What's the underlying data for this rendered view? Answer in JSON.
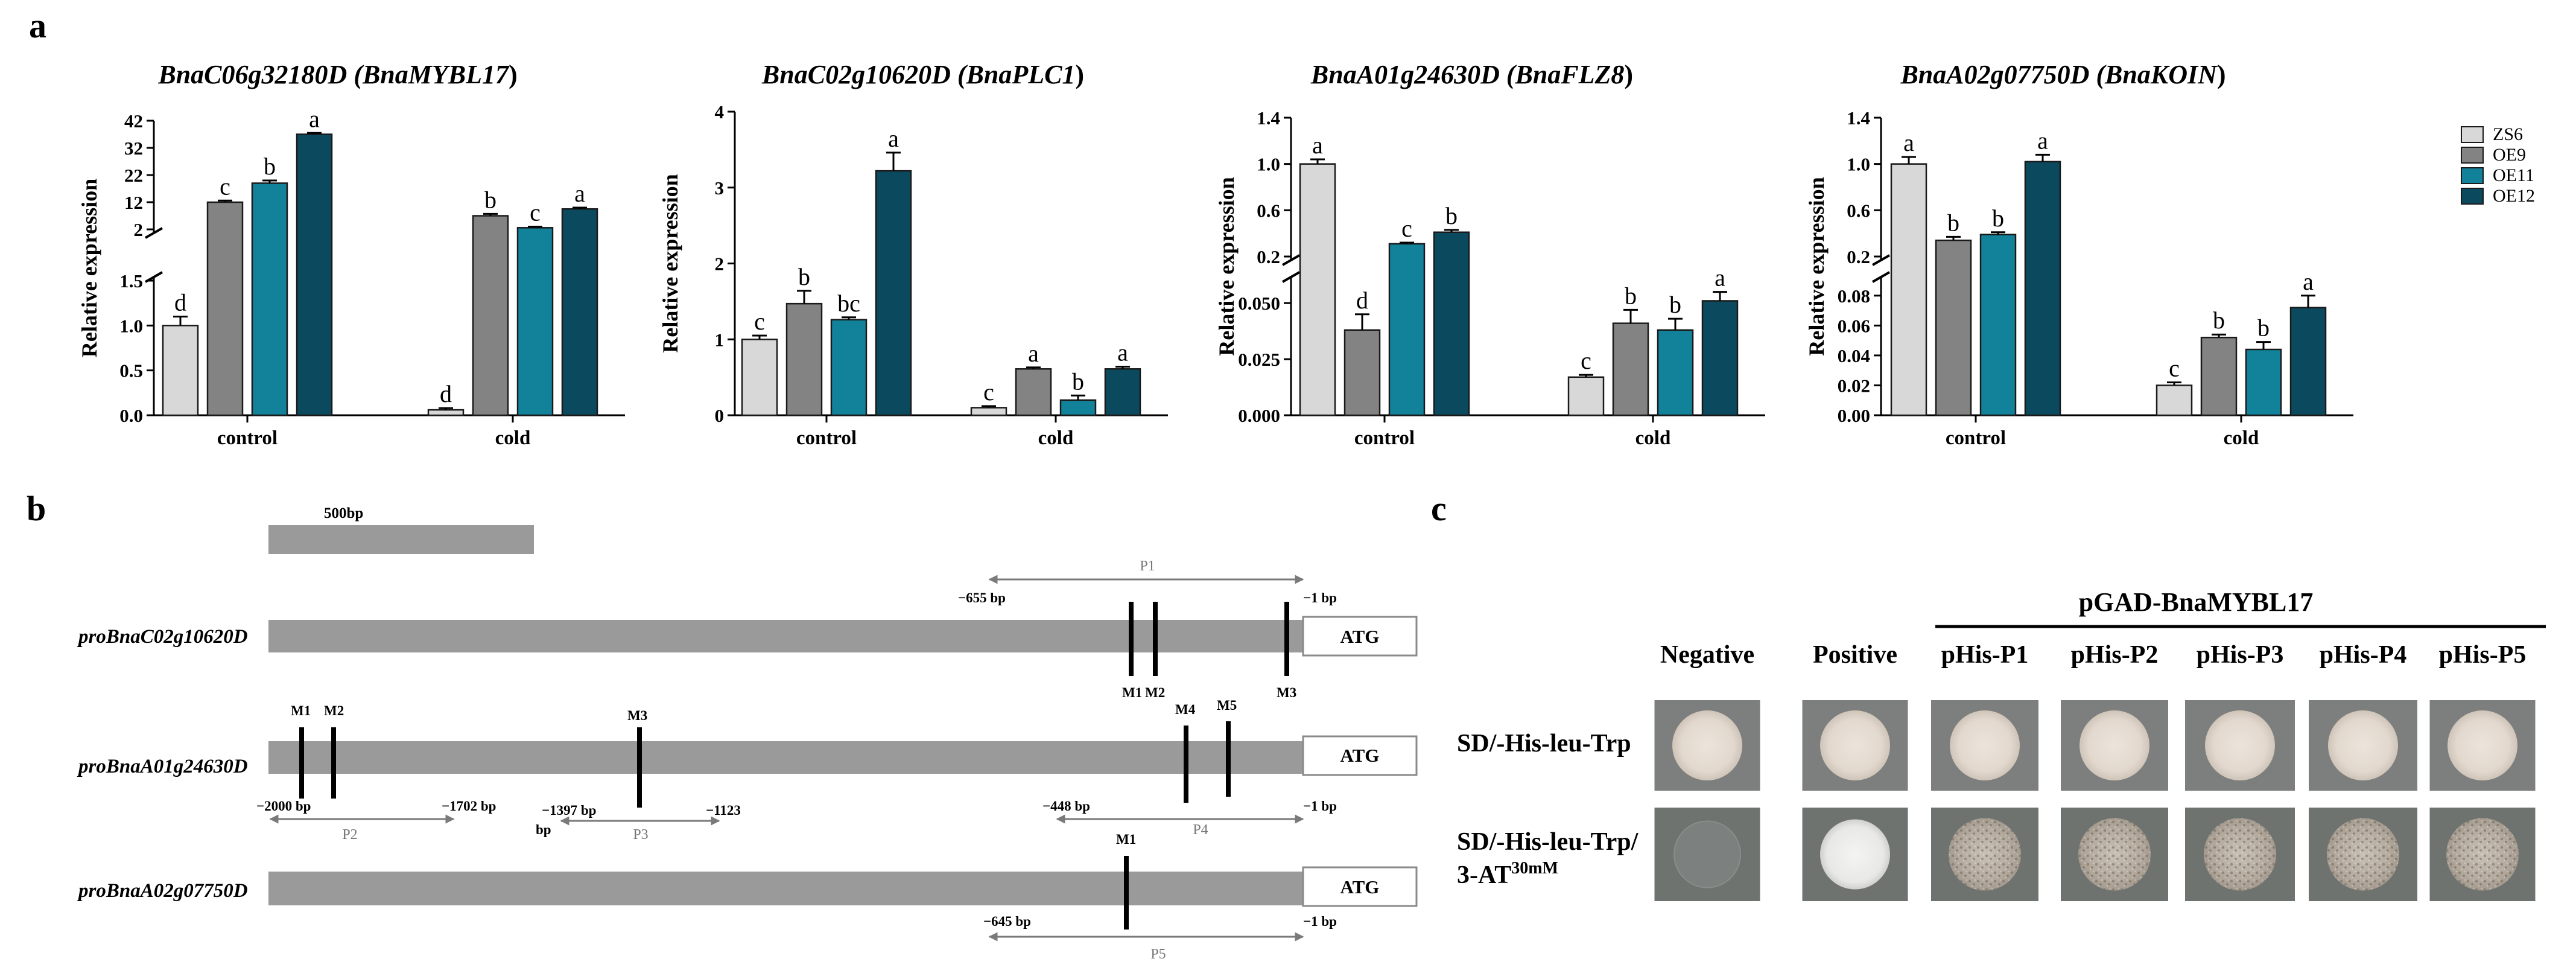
{
  "panel_labels": {
    "a": "a",
    "b": "b",
    "c": "c"
  },
  "colors": {
    "ZS6": "#d8d8d8",
    "OE9": "#838383",
    "OE11": "#12829a",
    "OE12": "#0b4a5e",
    "bar_stroke": "#1a1a1a",
    "gene_bar": "#9a9a9a",
    "arrow": "#7a7a7a"
  },
  "legend": [
    "ZS6",
    "OE9",
    "OE11",
    "OE12"
  ],
  "chart_data": [
    {
      "type": "bar",
      "gene_id": "BnaC06g32180D",
      "gene_name": "BnaMYBL17",
      "ylabel": "Relative expression",
      "categories": [
        "control",
        "cold"
      ],
      "series_names": [
        "ZS6",
        "OE9",
        "OE11",
        "OE12"
      ],
      "broken_axis": true,
      "upper_range": [
        2,
        42
      ],
      "upper_ticks": [
        "2",
        "12",
        "22",
        "32",
        "42"
      ],
      "lower_range": [
        0,
        1.5
      ],
      "lower_ticks": [
        "0.0",
        "0.5",
        "1.0",
        "1.5"
      ],
      "values": [
        [
          1.0,
          12.0,
          19.0,
          37.0
        ],
        [
          0.06,
          7.0,
          2.6,
          9.5
        ]
      ],
      "errors": [
        [
          0.1,
          0.6,
          1.0,
          0.5
        ],
        [
          0.02,
          0.7,
          0.4,
          0.5
        ]
      ],
      "letters": [
        [
          "d",
          "c",
          "b",
          "a"
        ],
        [
          "d",
          "b",
          "c",
          "a"
        ]
      ]
    },
    {
      "type": "bar",
      "gene_id": "BnaC02g10620D",
      "gene_name": "BnaPLC1",
      "ylabel": "Relative expression",
      "categories": [
        "control",
        "cold"
      ],
      "series_names": [
        "ZS6",
        "OE9",
        "OE11",
        "OE12"
      ],
      "broken_axis": false,
      "range": [
        0,
        4
      ],
      "ticks": [
        "0",
        "1",
        "2",
        "3",
        "4"
      ],
      "values": [
        [
          1.0,
          1.47,
          1.26,
          3.22
        ],
        [
          0.1,
          0.61,
          0.2,
          0.61
        ]
      ],
      "errors": [
        [
          0.05,
          0.17,
          0.03,
          0.24
        ],
        [
          0.02,
          0.02,
          0.06,
          0.03
        ]
      ],
      "letters": [
        [
          "c",
          "b",
          "bc",
          "a"
        ],
        [
          "c",
          "a",
          "b",
          "a"
        ]
      ]
    },
    {
      "type": "bar",
      "gene_id": "BnaA01g24630D",
      "gene_name": "BnaFLZ8",
      "ylabel": "Relative expression",
      "categories": [
        "control",
        "cold"
      ],
      "series_names": [
        "ZS6",
        "OE9",
        "OE11",
        "OE12"
      ],
      "broken_axis": true,
      "upper_range": [
        0.2,
        1.4
      ],
      "upper_ticks": [
        "0.2",
        "0.6",
        "1.0",
        "1.4"
      ],
      "lower_range": [
        0,
        0.06
      ],
      "lower_ticks": [
        "0.000",
        "0.025",
        "0.050"
      ],
      "values": [
        [
          1.0,
          0.038,
          0.31,
          0.41
        ],
        [
          0.017,
          0.041,
          0.038,
          0.051
        ]
      ],
      "errors": [
        [
          0.04,
          0.007,
          0.01,
          0.02
        ],
        [
          0.001,
          0.006,
          0.005,
          0.004
        ]
      ],
      "letters": [
        [
          "a",
          "d",
          "c",
          "b"
        ],
        [
          "c",
          "b",
          "b",
          "a"
        ]
      ]
    },
    {
      "type": "bar",
      "gene_id": "BnaA02g07750D",
      "gene_name": "BnaKOIN",
      "ylabel": "Relative expression",
      "categories": [
        "control",
        "cold"
      ],
      "series_names": [
        "ZS6",
        "OE9",
        "OE11",
        "OE12"
      ],
      "broken_axis": true,
      "upper_range": [
        0.2,
        1.4
      ],
      "upper_ticks": [
        "0.2",
        "0.6",
        "1.0",
        "1.4"
      ],
      "lower_range": [
        0,
        0.09
      ],
      "lower_ticks": [
        "0.00",
        "0.02",
        "0.04",
        "0.06",
        "0.08"
      ],
      "values": [
        [
          1.0,
          0.34,
          0.39,
          1.02
        ],
        [
          0.02,
          0.052,
          0.044,
          0.072
        ]
      ],
      "errors": [
        [
          0.06,
          0.03,
          0.02,
          0.06
        ],
        [
          0.002,
          0.002,
          0.005,
          0.008
        ]
      ],
      "letters": [
        [
          "a",
          "b",
          "b",
          "a"
        ],
        [
          "c",
          "b",
          "b",
          "a"
        ]
      ]
    }
  ],
  "panel_b": {
    "scale_label": "500bp",
    "atg": "ATG",
    "promoters": [
      {
        "name": "proBnaC02g10620D",
        "motifs": [
          "M1",
          "M2",
          "M3"
        ],
        "fragments": [
          {
            "label": "P1",
            "start": "−655 bp",
            "end": "−1 bp"
          }
        ]
      },
      {
        "name": "proBnaA01g24630D",
        "motifs": [
          "M1",
          "M2",
          "M3",
          "M4",
          "M5"
        ],
        "fragments": [
          {
            "label": "P2",
            "start": "−2000 bp",
            "end": "−1702 bp"
          },
          {
            "label": "P3",
            "start": "−1397 bp",
            "end": "−1123"
          },
          {
            "label": "P4",
            "start": "−448 bp",
            "end": "−1 bp"
          }
        ],
        "extra_text": "bp"
      },
      {
        "name": "proBnaA02g07750D",
        "motifs": [
          "M1"
        ],
        "fragments": [
          {
            "label": "P5",
            "start": "−645 bp",
            "end": "−1 bp"
          }
        ]
      }
    ]
  },
  "panel_c": {
    "group_label": "pGAD-BnaMYBL17",
    "columns": [
      "Negative",
      "Positive",
      "pHis-P1",
      "pHis-P2",
      "pHis-P3",
      "pHis-P4",
      "pHis-P5"
    ],
    "rows": [
      {
        "label": "SD/-His-leu-Trp"
      },
      {
        "label_line1": "SD/-His-leu-Trp/",
        "label_line2": "3-AT",
        "label_sup": "30mM"
      }
    ]
  }
}
